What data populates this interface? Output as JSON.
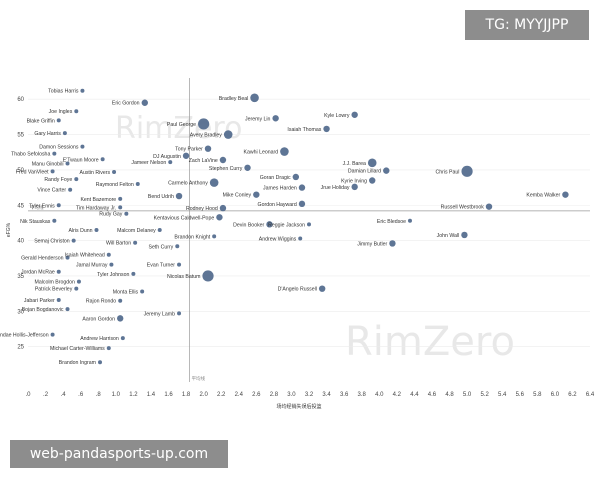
{
  "badges": {
    "top_right": "TG: MYYJJPP",
    "bottom_left": "web-pandasports-up.com"
  },
  "watermark": {
    "text": "RimZero"
  },
  "chart_data": {
    "type": "scatter",
    "xlabel": "场均经销失误后投篮",
    "ylabel": "eFG%",
    "xlim": [
      0,
      6.4
    ],
    "ylim": [
      20,
      63
    ],
    "xticks": [
      ".0",
      ".2",
      ".4",
      ".6",
      ".8",
      "1.0",
      "1.2",
      "1.4",
      "1.6",
      "1.8",
      "2.0",
      "2.2",
      "2.4",
      "2.6",
      "2.8",
      "3.0",
      "3.2",
      "3.4",
      "3.6",
      "3.8",
      "4.0",
      "4.2",
      "4.4",
      "4.6",
      "4.8",
      "5.0",
      "5.2",
      "5.4",
      "5.6",
      "5.8",
      "6.0",
      "6.2",
      "6.4"
    ],
    "yticks": [
      25,
      30,
      35,
      40,
      45,
      50,
      55,
      60
    ],
    "ref_lines": {
      "x": 1.84,
      "y": 44.2,
      "x_label": "平均线",
      "y_label": "平均线"
    },
    "point_color": "#50698c",
    "points": [
      {
        "name": "Tobias Harris",
        "x": 0.62,
        "y": 61.2,
        "s": 2
      },
      {
        "name": "Joe Ingles",
        "x": 0.55,
        "y": 58.3,
        "s": 2
      },
      {
        "name": "Blake Griffin",
        "x": 0.35,
        "y": 57.0,
        "s": 2
      },
      {
        "name": "Gary Harris",
        "x": 0.42,
        "y": 55.2,
        "s": 2
      },
      {
        "name": "Eric Gordon",
        "x": 1.33,
        "y": 59.5,
        "s": 3
      },
      {
        "name": "Bradley Beal",
        "x": 2.58,
        "y": 60.2,
        "s": 4
      },
      {
        "name": "Jeremy Lin",
        "x": 2.82,
        "y": 57.3,
        "s": 3
      },
      {
        "name": "Kyle Lowry",
        "x": 3.72,
        "y": 57.8,
        "s": 3
      },
      {
        "name": "Paul George",
        "x": 2.0,
        "y": 56.5,
        "s": 5
      },
      {
        "name": "Avery Bradley",
        "x": 2.28,
        "y": 55.0,
        "s": 4
      },
      {
        "name": "Isaiah Thomas",
        "x": 3.4,
        "y": 55.8,
        "s": 3
      },
      {
        "name": "Damon Sessions",
        "x": 0.62,
        "y": 53.3,
        "s": 2
      },
      {
        "name": "Thabo Sefolosha",
        "x": 0.3,
        "y": 52.3,
        "s": 2
      },
      {
        "name": "Tony Parker",
        "x": 2.05,
        "y": 53.0,
        "s": 3
      },
      {
        "name": "DJ Augustin",
        "x": 1.8,
        "y": 52.0,
        "s": 3
      },
      {
        "name": "E'Twaun Moore",
        "x": 0.85,
        "y": 51.5,
        "s": 2
      },
      {
        "name": "Manu Ginobili",
        "x": 0.45,
        "y": 50.9,
        "s": 2
      },
      {
        "name": "Kawhi Leonard",
        "x": 2.92,
        "y": 52.6,
        "s": 4
      },
      {
        "name": "Jameer Nelson",
        "x": 1.62,
        "y": 51.1,
        "s": 2
      },
      {
        "name": "Zach LaVine",
        "x": 2.22,
        "y": 51.4,
        "s": 3
      },
      {
        "name": "Stephen Curry",
        "x": 2.5,
        "y": 50.3,
        "s": 3
      },
      {
        "name": "J.J. Barea",
        "x": 3.92,
        "y": 51.0,
        "s": 4
      },
      {
        "name": "Damian Lillard",
        "x": 4.08,
        "y": 49.9,
        "s": 3
      },
      {
        "name": "Fred VanVleet",
        "x": 0.28,
        "y": 49.8,
        "s": 2
      },
      {
        "name": "Austin Rivers",
        "x": 0.98,
        "y": 49.7,
        "s": 2
      },
      {
        "name": "Chris Paul",
        "x": 5.0,
        "y": 49.8,
        "s": 5
      },
      {
        "name": "Goran Dragic",
        "x": 3.05,
        "y": 49.0,
        "s": 3
      },
      {
        "name": "Randy Foye",
        "x": 0.55,
        "y": 48.7,
        "s": 2
      },
      {
        "name": "Raymond Felton",
        "x": 1.25,
        "y": 48.0,
        "s": 2
      },
      {
        "name": "Carmelo Anthony",
        "x": 2.12,
        "y": 48.2,
        "s": 4
      },
      {
        "name": "Kyrie Irving",
        "x": 3.92,
        "y": 48.5,
        "s": 3
      },
      {
        "name": "Vince Carter",
        "x": 0.48,
        "y": 47.2,
        "s": 2
      },
      {
        "name": "James Harden",
        "x": 3.12,
        "y": 47.5,
        "s": 3
      },
      {
        "name": "Jrue Holiday",
        "x": 3.72,
        "y": 47.6,
        "s": 3
      },
      {
        "name": "Mike Conley",
        "x": 2.6,
        "y": 46.5,
        "s": 3
      },
      {
        "name": "Kent Bazemore",
        "x": 1.05,
        "y": 45.9,
        "s": 2
      },
      {
        "name": "Bend Udrih",
        "x": 1.72,
        "y": 46.3,
        "s": 3
      },
      {
        "name": "Gordon Hayward",
        "x": 3.12,
        "y": 45.2,
        "s": 3
      },
      {
        "name": "Tyler Ennis",
        "x": 0.35,
        "y": 45.0,
        "s": 2
      },
      {
        "name": "Tim Hardaway Jr.",
        "x": 1.05,
        "y": 44.7,
        "s": 2
      },
      {
        "name": "Rodney Hood",
        "x": 2.22,
        "y": 44.6,
        "s": 3
      },
      {
        "name": "Kemba Walker",
        "x": 6.12,
        "y": 46.5,
        "s": 3
      },
      {
        "name": "Rudy Gay",
        "x": 1.12,
        "y": 43.8,
        "s": 2
      },
      {
        "name": "Russell Westbrook",
        "x": 5.25,
        "y": 44.8,
        "s": 3
      },
      {
        "name": "Kentavious Caldwell-Pope",
        "x": 2.18,
        "y": 43.3,
        "s": 3
      },
      {
        "name": "Nik Stauskas",
        "x": 0.3,
        "y": 42.8,
        "s": 2
      },
      {
        "name": "Devin Booker",
        "x": 2.75,
        "y": 42.3,
        "s": 3
      },
      {
        "name": "Reggie Jackson",
        "x": 3.2,
        "y": 42.3,
        "s": 2
      },
      {
        "name": "Eric Bledsoe",
        "x": 4.35,
        "y": 42.8,
        "s": 2
      },
      {
        "name": "Alris Dunn",
        "x": 0.78,
        "y": 41.5,
        "s": 2
      },
      {
        "name": "Malcom Delaney",
        "x": 1.5,
        "y": 41.5,
        "s": 2
      },
      {
        "name": "John Wall",
        "x": 4.97,
        "y": 40.8,
        "s": 3
      },
      {
        "name": "Semaj Christon",
        "x": 0.52,
        "y": 40.0,
        "s": 2
      },
      {
        "name": "Brandon Knight",
        "x": 2.12,
        "y": 40.6,
        "s": 2
      },
      {
        "name": "Andrew Wiggins",
        "x": 3.1,
        "y": 40.3,
        "s": 2
      },
      {
        "name": "Will Barton",
        "x": 1.22,
        "y": 39.7,
        "s": 2
      },
      {
        "name": "Seth Curry",
        "x": 1.7,
        "y": 39.2,
        "s": 2
      },
      {
        "name": "Jimmy Butler",
        "x": 4.15,
        "y": 39.6,
        "s": 3
      },
      {
        "name": "Isaiah Whitehead",
        "x": 0.92,
        "y": 38.0,
        "s": 2
      },
      {
        "name": "Gerald Henderson",
        "x": 0.45,
        "y": 37.6,
        "s": 2
      },
      {
        "name": "Jamal Murray",
        "x": 0.95,
        "y": 36.6,
        "s": 2
      },
      {
        "name": "Evan Turner",
        "x": 1.72,
        "y": 36.6,
        "s": 2
      },
      {
        "name": "Jordan McRae",
        "x": 0.35,
        "y": 35.6,
        "s": 2
      },
      {
        "name": "Tyler Johnson",
        "x": 1.2,
        "y": 35.3,
        "s": 2
      },
      {
        "name": "Nicolas Batum",
        "x": 2.05,
        "y": 35.0,
        "s": 5
      },
      {
        "name": "Malcolm Brogdon",
        "x": 0.58,
        "y": 34.2,
        "s": 2
      },
      {
        "name": "Patrick Beverley",
        "x": 0.55,
        "y": 33.2,
        "s": 2
      },
      {
        "name": "Monta Ellis",
        "x": 1.3,
        "y": 32.8,
        "s": 2
      },
      {
        "name": "D'Angelo Russell",
        "x": 3.35,
        "y": 33.2,
        "s": 3
      },
      {
        "name": "Rajon Rondo",
        "x": 1.05,
        "y": 31.5,
        "s": 2
      },
      {
        "name": "Jabari Parker",
        "x": 0.35,
        "y": 31.6,
        "s": 2
      },
      {
        "name": "Bojan Bogdanovic",
        "x": 0.45,
        "y": 30.3,
        "s": 2
      },
      {
        "name": "Jeremy Lamb",
        "x": 1.72,
        "y": 29.7,
        "s": 2
      },
      {
        "name": "Aaron Gordon",
        "x": 1.05,
        "y": 29.0,
        "s": 3
      },
      {
        "name": "Rondae Hollis-Jefferson",
        "x": 0.28,
        "y": 26.7,
        "s": 2
      },
      {
        "name": "Andrew Harrison",
        "x": 1.08,
        "y": 26.2,
        "s": 2
      },
      {
        "name": "Michael Carter-Williams",
        "x": 0.92,
        "y": 24.8,
        "s": 2
      },
      {
        "name": "Brandon Ingram",
        "x": 0.82,
        "y": 22.8,
        "s": 2
      }
    ]
  }
}
